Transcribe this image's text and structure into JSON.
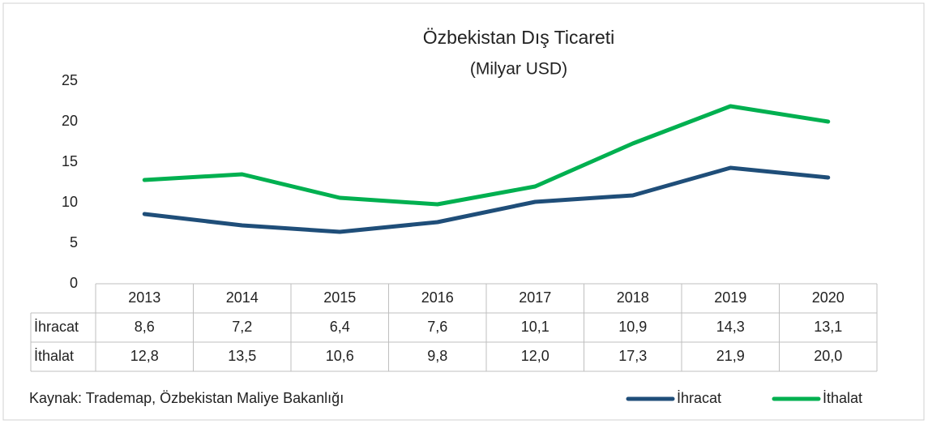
{
  "chart_data": {
    "type": "line",
    "title": "Özbekistan Dış Ticareti",
    "subtitle": "(Milyar USD)",
    "categories": [
      "2013",
      "2014",
      "2015",
      "2016",
      "2017",
      "2018",
      "2019",
      "2020"
    ],
    "series": [
      {
        "name": "İhracat",
        "color": "#1f4e79",
        "values": [
          8.6,
          7.2,
          6.4,
          7.6,
          10.1,
          10.9,
          14.3,
          13.1
        ],
        "value_labels": [
          "8,6",
          "7,2",
          "6,4",
          "7,6",
          "10,1",
          "10,9",
          "14,3",
          "13,1"
        ]
      },
      {
        "name": "İthalat",
        "color": "#00b050",
        "values": [
          12.8,
          13.5,
          10.6,
          9.8,
          12.0,
          17.3,
          21.9,
          20.0
        ],
        "value_labels": [
          "12,8",
          "13,5",
          "10,6",
          "9,8",
          "12,0",
          "17,3",
          "21,9",
          "20,0"
        ]
      }
    ],
    "ylim": [
      0,
      25
    ],
    "yticks": [
      0,
      5,
      10,
      15,
      20,
      25
    ],
    "grid": false,
    "legend": "bottom-right",
    "note": "Kaynak: Trademap, Özbekistan Maliye Bakanlığı"
  }
}
